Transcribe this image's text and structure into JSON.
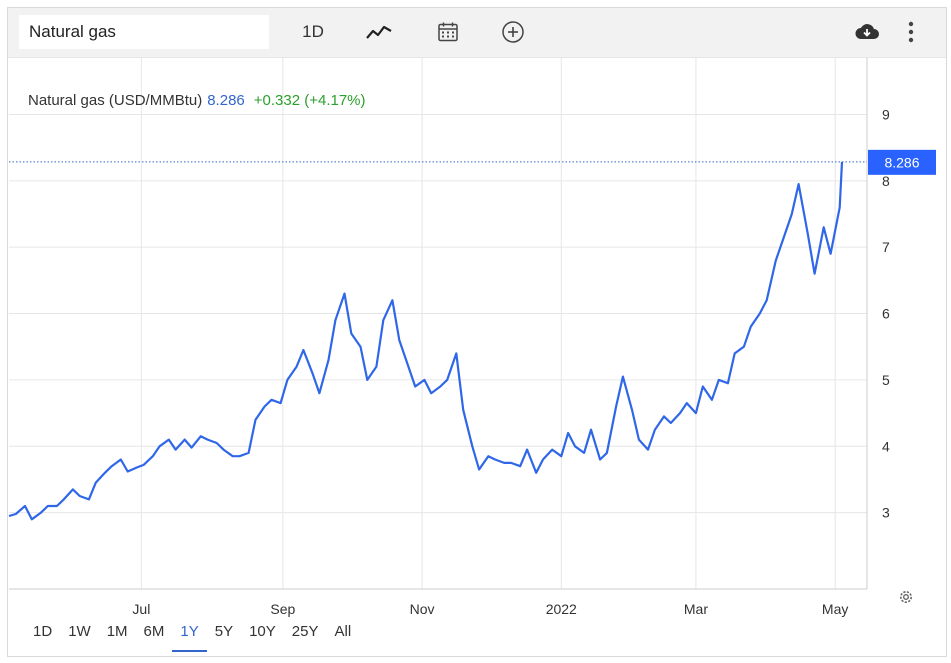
{
  "toolbar": {
    "search_value": "Natural gas",
    "interval_label": "1D",
    "icons": [
      "line-chart-icon",
      "calendar-icon",
      "add-icon",
      "download-icon",
      "more-icon"
    ]
  },
  "header": {
    "name": "Natural gas (USD/MMBtu)",
    "price": "8.286",
    "change": "+0.332 (+4.17%)",
    "price_color": "#3366cc",
    "change_color": "#2ca02c"
  },
  "last_price_badge": "8.286",
  "range_buttons": [
    "1D",
    "1W",
    "1M",
    "6M",
    "1Y",
    "5Y",
    "10Y",
    "25Y",
    "All"
  ],
  "active_range": "1Y",
  "chart_data": {
    "type": "line",
    "series": [
      {
        "color": "#2f67e8",
        "x": [
          "2021-05-04",
          "2021-05-07",
          "2021-05-11",
          "2021-05-14",
          "2021-05-18",
          "2021-05-21",
          "2021-05-25",
          "2021-05-28",
          "2021-06-01",
          "2021-06-04",
          "2021-06-08",
          "2021-06-11",
          "2021-06-15",
          "2021-06-18",
          "2021-06-22",
          "2021-06-25",
          "2021-06-29",
          "2021-07-02",
          "2021-07-06",
          "2021-07-09",
          "2021-07-13",
          "2021-07-16",
          "2021-07-20",
          "2021-07-23",
          "2021-07-27",
          "2021-07-30",
          "2021-08-03",
          "2021-08-06",
          "2021-08-10",
          "2021-08-13",
          "2021-08-17",
          "2021-08-20",
          "2021-08-24",
          "2021-08-27",
          "2021-08-31",
          "2021-09-03",
          "2021-09-07",
          "2021-09-10",
          "2021-09-14",
          "2021-09-17",
          "2021-09-21",
          "2021-09-24",
          "2021-09-28",
          "2021-10-01",
          "2021-10-05",
          "2021-10-08",
          "2021-10-12",
          "2021-10-15",
          "2021-10-19",
          "2021-10-22",
          "2021-10-26",
          "2021-10-29",
          "2021-11-02",
          "2021-11-05",
          "2021-11-09",
          "2021-11-12",
          "2021-11-16",
          "2021-11-19",
          "2021-11-23",
          "2021-11-26",
          "2021-11-30",
          "2021-12-03",
          "2021-12-07",
          "2021-12-10",
          "2021-12-14",
          "2021-12-17",
          "2021-12-21",
          "2021-12-24",
          "2021-12-28",
          "2022-01-01",
          "2022-01-04",
          "2022-01-07",
          "2022-01-11",
          "2022-01-14",
          "2022-01-18",
          "2022-01-21",
          "2022-01-25",
          "2022-01-28",
          "2022-02-01",
          "2022-02-04",
          "2022-02-08",
          "2022-02-11",
          "2022-02-15",
          "2022-02-18",
          "2022-02-22",
          "2022-02-25",
          "2022-03-01",
          "2022-03-04",
          "2022-03-08",
          "2022-03-11",
          "2022-03-15",
          "2022-03-18",
          "2022-03-22",
          "2022-03-25",
          "2022-03-29",
          "2022-04-01",
          "2022-04-05",
          "2022-04-08",
          "2022-04-12",
          "2022-04-15",
          "2022-04-19",
          "2022-04-22",
          "2022-04-26",
          "2022-04-29",
          "2022-05-03",
          "2022-05-04"
        ],
        "y": [
          2.95,
          2.98,
          3.1,
          2.9,
          3.0,
          3.1,
          3.1,
          3.2,
          3.35,
          3.25,
          3.2,
          3.45,
          3.6,
          3.7,
          3.8,
          3.62,
          3.68,
          3.72,
          3.85,
          4.0,
          4.1,
          3.95,
          4.1,
          3.98,
          4.15,
          4.1,
          4.05,
          3.95,
          3.85,
          3.85,
          3.9,
          4.4,
          4.6,
          4.7,
          4.65,
          5.0,
          5.2,
          5.45,
          5.1,
          4.8,
          5.3,
          5.9,
          6.3,
          5.7,
          5.5,
          5.0,
          5.2,
          5.9,
          6.2,
          5.6,
          5.2,
          4.9,
          5.0,
          4.8,
          4.9,
          5.0,
          5.4,
          4.55,
          4.0,
          3.65,
          3.85,
          3.8,
          3.75,
          3.75,
          3.7,
          3.95,
          3.6,
          3.8,
          3.95,
          3.85,
          4.2,
          4.0,
          3.9,
          4.25,
          3.8,
          3.9,
          4.6,
          5.05,
          4.55,
          4.1,
          3.95,
          4.25,
          4.45,
          4.35,
          4.5,
          4.65,
          4.5,
          4.9,
          4.7,
          5.0,
          4.95,
          5.4,
          5.5,
          5.8,
          6.0,
          6.2,
          6.8,
          7.1,
          7.5,
          7.95,
          7.2,
          6.6,
          7.3,
          6.9,
          7.6,
          8.286
        ]
      }
    ],
    "x_ticks": [
      "Jul",
      "Sep",
      "Nov",
      "2022",
      "Mar",
      "May"
    ],
    "y_ticks": [
      3,
      4,
      5,
      6,
      7,
      8,
      9
    ],
    "ylim": [
      2.0,
      9.7
    ],
    "xlim": [
      "2021-05-04",
      "2022-05-04"
    ],
    "grid": true,
    "y_axis_side": "right"
  }
}
